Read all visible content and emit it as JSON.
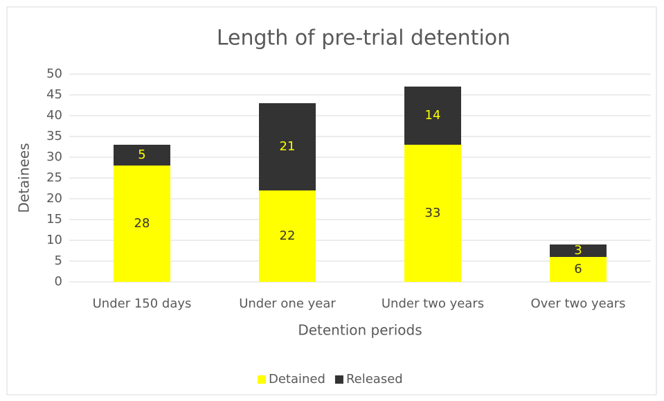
{
  "chart_data": {
    "type": "stacked_bar",
    "title": "Length of pre-trial detention",
    "x_label": "Detention periods",
    "y_label": "Detainees",
    "categories": [
      "Under 150 days",
      "Under one year",
      "Under two years",
      "Over two years"
    ],
    "series": [
      {
        "name": "Detained",
        "color": "#ffff00",
        "values": [
          28,
          22,
          33,
          6
        ]
      },
      {
        "name": "Released",
        "color": "#333333",
        "values": [
          5,
          21,
          14,
          3
        ]
      }
    ],
    "ylim": [
      0,
      50
    ],
    "yticks": [
      0,
      5,
      10,
      15,
      20,
      25,
      30,
      35,
      40,
      45,
      50
    ],
    "grid": true,
    "legend": "bottom"
  }
}
